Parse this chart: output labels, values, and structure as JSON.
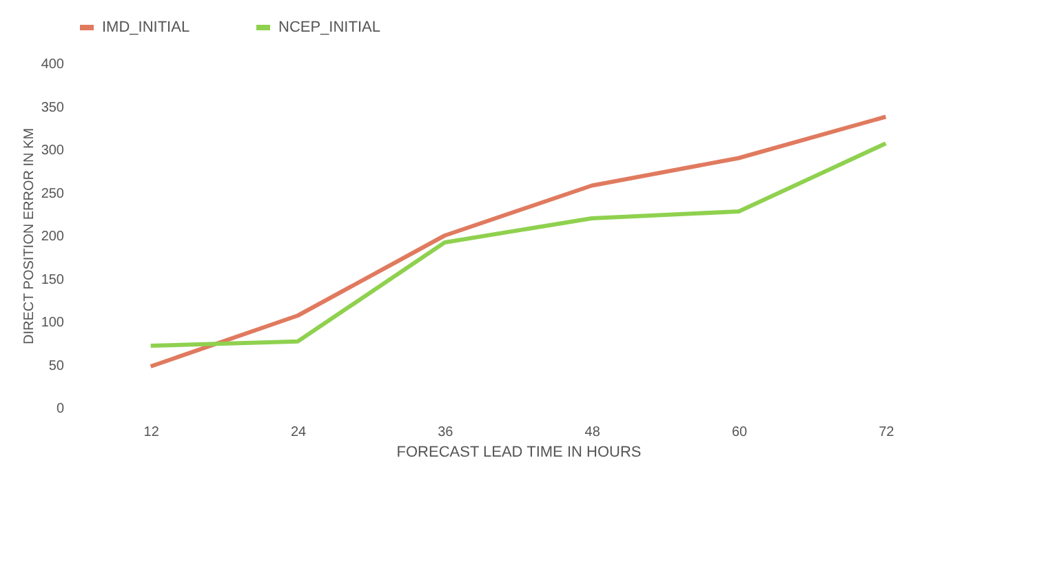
{
  "chart_data": {
    "type": "line",
    "xlabel": "FORECAST LEAD TIME IN HOURS",
    "ylabel": "DIRECT POSITION ERROR IN KM",
    "categories": [
      "12",
      "24",
      "36",
      "48",
      "60",
      "72"
    ],
    "series": [
      {
        "name": "IMD_INITIAL",
        "color": "#e07a5f",
        "values": [
          48,
          107,
          200,
          258,
          290,
          338
        ]
      },
      {
        "name": "NCEP_INITIAL",
        "color": "#8fd14f",
        "values": [
          72,
          77,
          192,
          220,
          228,
          307
        ]
      }
    ],
    "ylim": [
      0,
      400
    ],
    "yticks": [
      0,
      50,
      100,
      150,
      200,
      250,
      300,
      350,
      400
    ],
    "grid": false,
    "legend": "top",
    "marker": "none",
    "line_style": "solid"
  }
}
